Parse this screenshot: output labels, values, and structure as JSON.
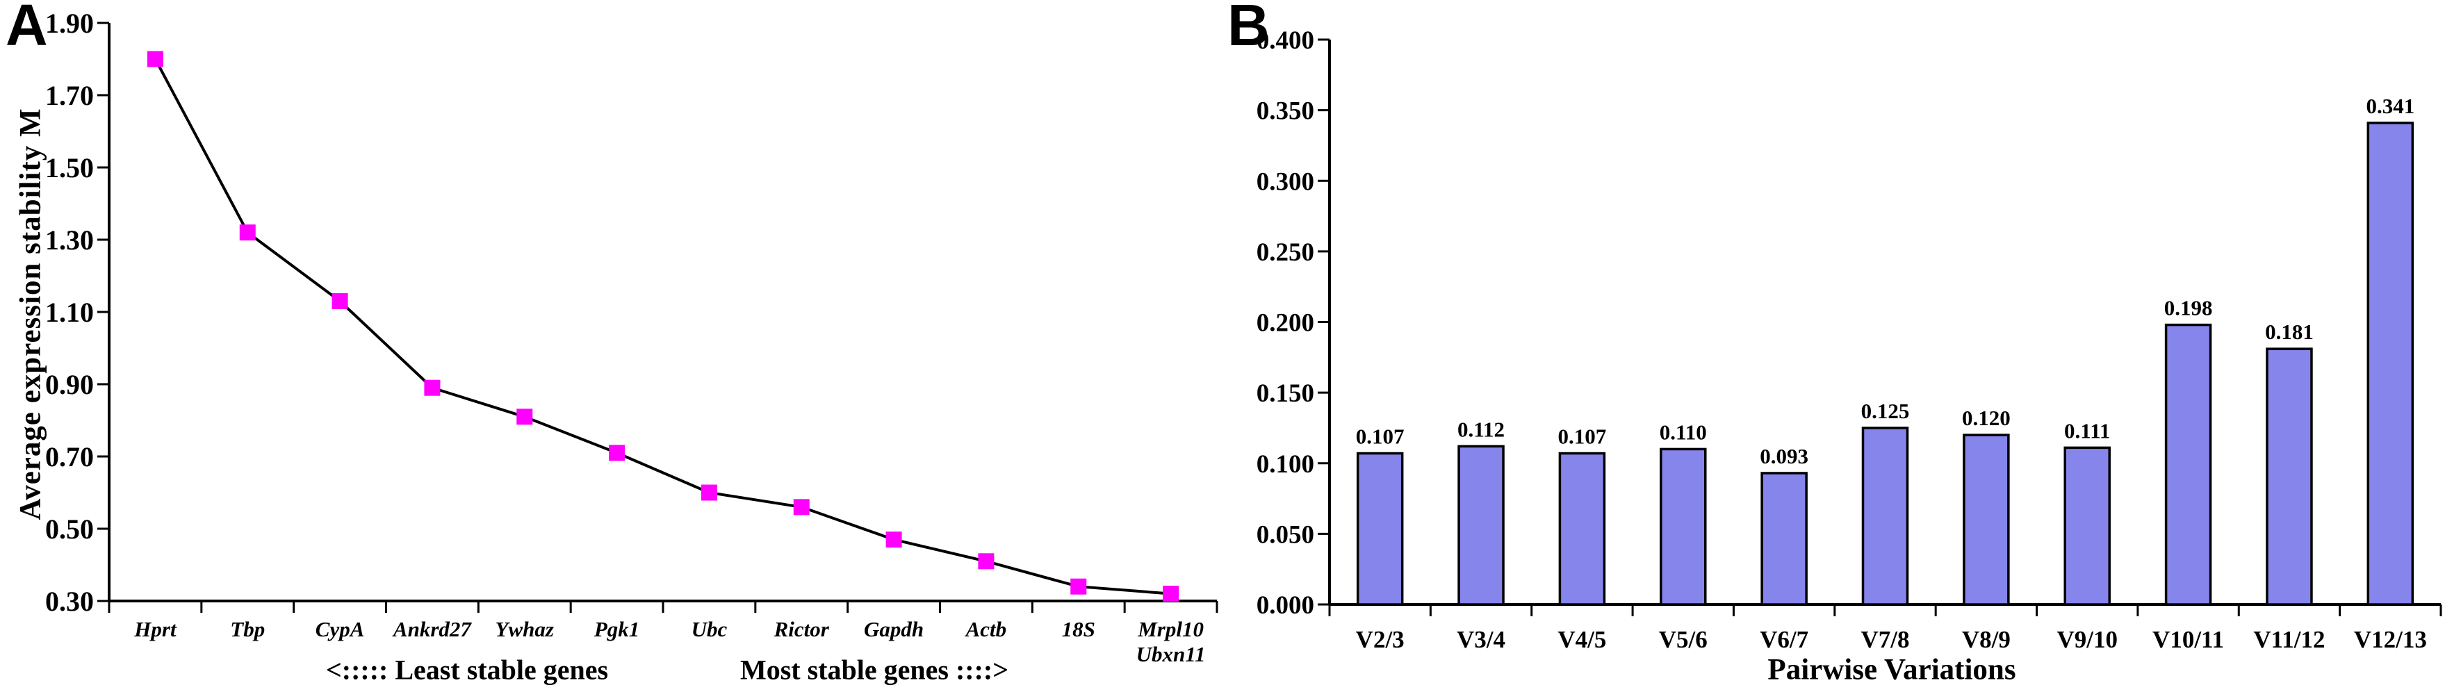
{
  "panels": {
    "a": {
      "letter": "A"
    },
    "b": {
      "letter": "B"
    }
  },
  "chart_data": [
    {
      "id": "gene-stability-line",
      "panel": "A",
      "type": "line",
      "title": "",
      "ylabel": "Average expression stability M",
      "xlabel_left": "<:::::  Least stable genes",
      "xlabel_right": "Most stable genes ::::>",
      "ylim": [
        0.3,
        1.9
      ],
      "yticks": [
        "1.90",
        "1.70",
        "1.50",
        "1.30",
        "1.10",
        "0.90",
        "0.70",
        "0.50",
        "0.30"
      ],
      "grid": false,
      "legend": false,
      "categories": [
        "Hprt",
        "Tbp",
        "CypA",
        "Ankrd27",
        "Ywhaz",
        "Pgk1",
        "Ubc",
        "Rictor",
        "Gapdh",
        "Actb",
        "18S",
        "Mrpl10|Ubxn11"
      ],
      "values": [
        1.8,
        1.32,
        1.13,
        0.89,
        0.81,
        0.71,
        0.6,
        0.56,
        0.47,
        0.41,
        0.34,
        0.32
      ],
      "line_color": "#000000",
      "marker_color": "#ff00ff"
    },
    {
      "id": "pairwise-variation-bars",
      "panel": "B",
      "type": "bar",
      "title": "",
      "xlabel": "Pairwise Variations",
      "ylabel": "",
      "ylim": [
        0.0,
        0.4
      ],
      "yticks": [
        "0.400",
        "0.350",
        "0.300",
        "0.250",
        "0.200",
        "0.150",
        "0.100",
        "0.050",
        "0.000"
      ],
      "grid": false,
      "legend": false,
      "categories": [
        "V2/3",
        "V3/4",
        "V4/5",
        "V5/6",
        "V6/7",
        "V7/8",
        "V8/9",
        "V9/10",
        "V10/11",
        "V11/12",
        "V12/13"
      ],
      "values": [
        0.107,
        0.112,
        0.107,
        0.11,
        0.093,
        0.125,
        0.12,
        0.111,
        0.198,
        0.181,
        0.341
      ],
      "value_labels": [
        "0.107",
        "0.112",
        "0.107",
        "0.110",
        "0.093",
        "0.125",
        "0.120",
        "0.111",
        "0.198",
        "0.181",
        "0.341"
      ],
      "bar_color": "#8585ec",
      "bar_border_color": "#000000",
      "axis_color": "#000000"
    }
  ]
}
